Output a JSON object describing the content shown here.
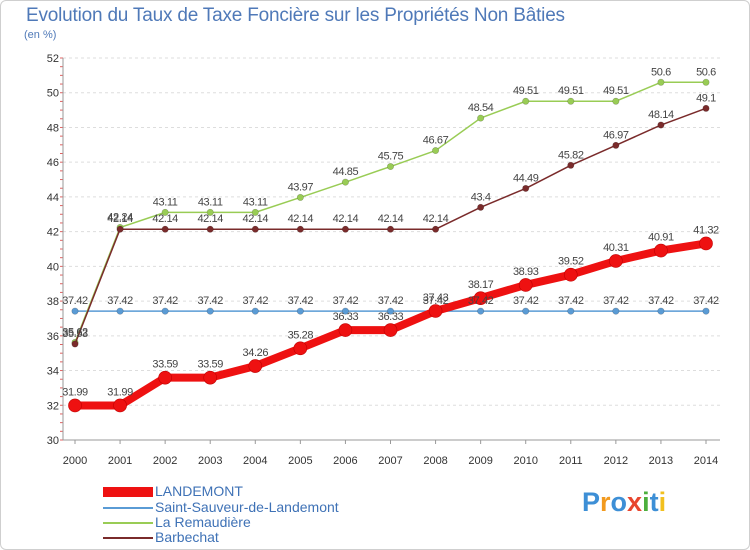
{
  "chart_data": {
    "type": "line",
    "title": "Evolution du Taux de Taxe Foncière sur les Propriétés Non Bâties",
    "unit_label": "(en %)",
    "xlabel": "",
    "ylabel": "",
    "x": [
      "2000",
      "2001",
      "2002",
      "2003",
      "2004",
      "2005",
      "2006",
      "2007",
      "2008",
      "2009",
      "2010",
      "2011",
      "2012",
      "2013",
      "2014"
    ],
    "ylim": [
      30,
      52
    ],
    "yticks": [
      "30",
      "32",
      "34",
      "36",
      "38",
      "40",
      "42",
      "44",
      "46",
      "48",
      "50",
      "52"
    ],
    "grid": "horizontal",
    "series": [
      {
        "name": "LANDEMONT",
        "color": "#ee1111",
        "values": [
          31.99,
          31.99,
          33.59,
          33.59,
          34.26,
          35.28,
          36.33,
          36.33,
          37.43,
          38.17,
          38.93,
          39.52,
          40.31,
          40.91,
          41.32
        ],
        "labels": [
          "31.99",
          "31.99",
          "33.59",
          "33.59",
          "34.26",
          "35.28",
          "36.33",
          "36.33",
          "37.43",
          "38.17",
          "38.93",
          "39.52",
          "40.31",
          "40.91",
          "41.32"
        ]
      },
      {
        "name": "Saint-Sauveur-de-Landemont",
        "color": "#5a9bd5",
        "values": [
          37.42,
          37.42,
          37.42,
          37.42,
          37.42,
          37.42,
          37.42,
          37.42,
          37.42,
          37.42,
          37.42,
          37.42,
          37.42,
          37.42,
          37.42
        ],
        "labels": [
          "37.42",
          "37.42",
          "37.42",
          "37.42",
          "37.42",
          "37.42",
          "37.42",
          "37.42",
          "37.42",
          "37.42",
          "37.42",
          "37.42",
          "37.42",
          "37.42",
          "37.42"
        ]
      },
      {
        "name": "La Remaudière",
        "color": "#99cc55",
        "values": [
          35.62,
          42.24,
          43.11,
          43.11,
          43.11,
          43.97,
          44.85,
          45.75,
          46.67,
          48.54,
          49.51,
          49.51,
          49.51,
          50.6,
          50.6
        ],
        "labels": [
          "35.62",
          "42.24",
          "43.11",
          "43.11",
          "43.11",
          "43.97",
          "44.85",
          "45.75",
          "46.67",
          "48.54",
          "49.51",
          "49.51",
          "49.51",
          "50.6",
          "50.6"
        ]
      },
      {
        "name": "Barbechat",
        "color": "#7a2b2b",
        "values": [
          35.53,
          42.14,
          42.14,
          42.14,
          42.14,
          42.14,
          42.14,
          42.14,
          42.14,
          43.4,
          44.49,
          45.82,
          46.97,
          48.14,
          49.1
        ],
        "labels": [
          "35.53",
          "42.14",
          "42.14",
          "42.14",
          "42.14",
          "42.14",
          "42.14",
          "42.14",
          "42.14",
          "43.4",
          "44.49",
          "45.82",
          "46.97",
          "48.14",
          "49.1"
        ]
      }
    ]
  },
  "logo": {
    "text": "Proxiti"
  }
}
